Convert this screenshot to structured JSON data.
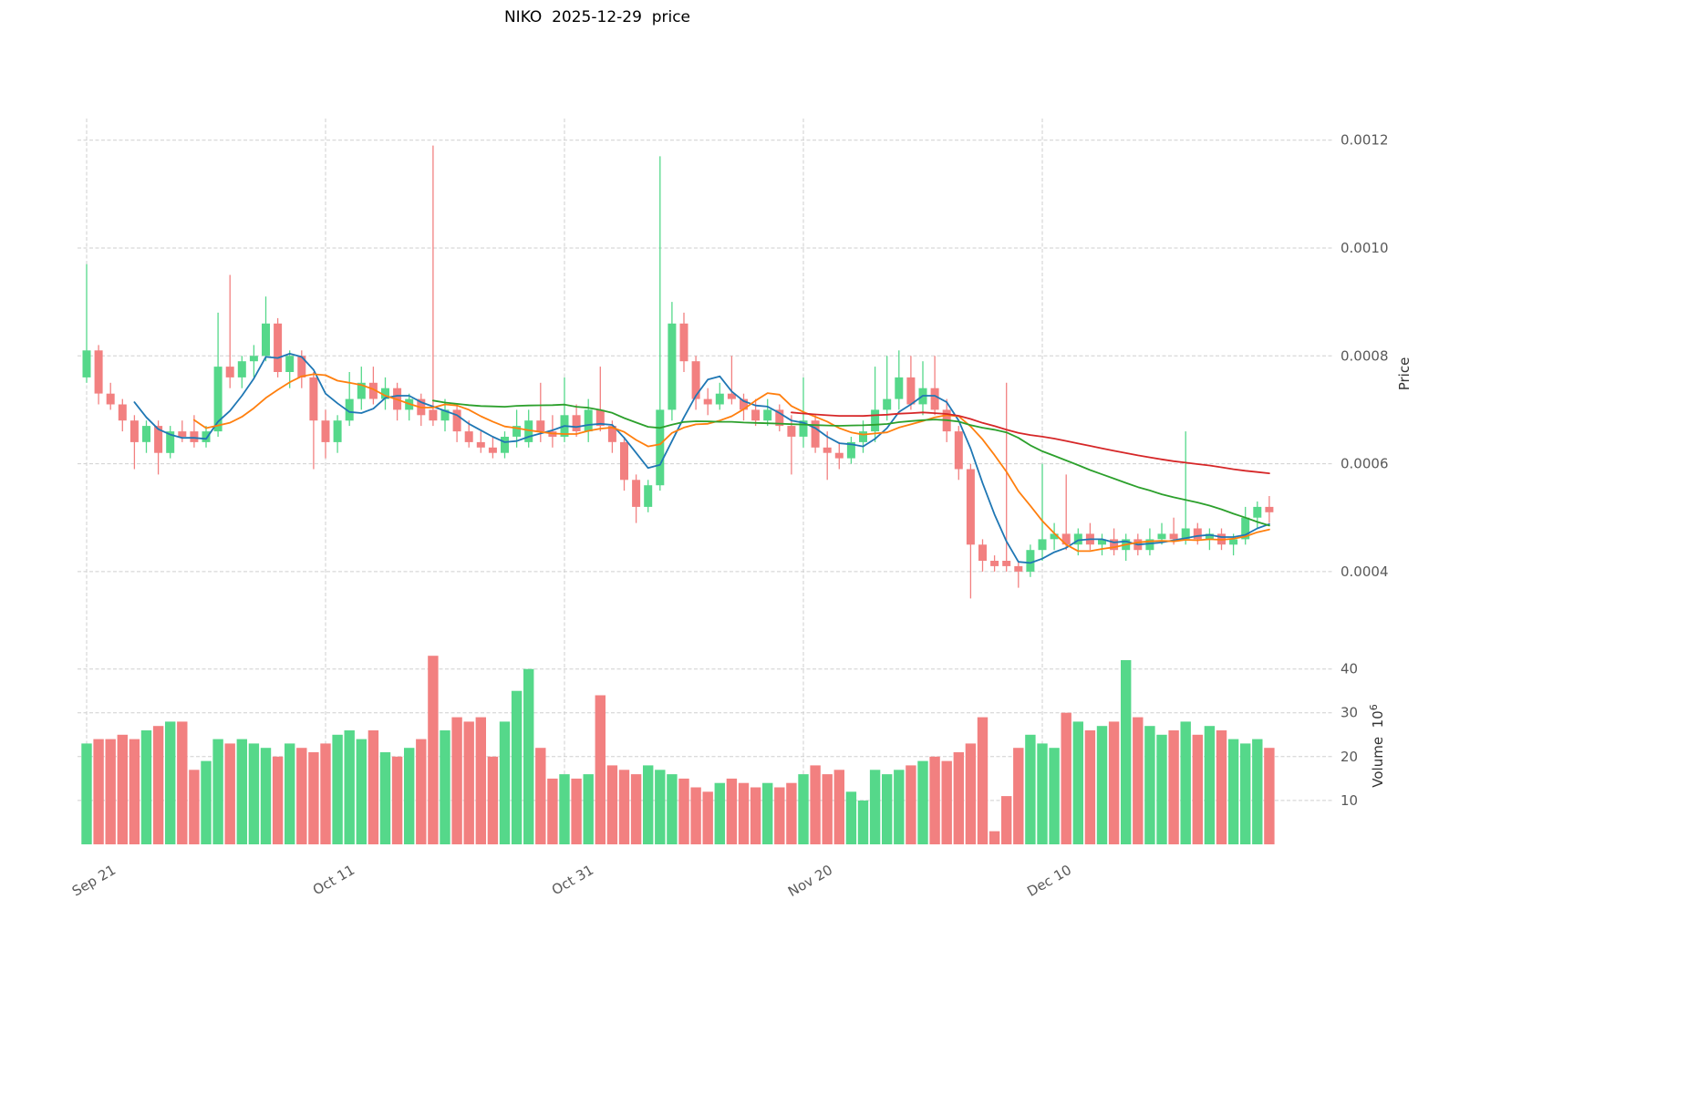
{
  "chart_data": {
    "type": "candlestick",
    "title": "NIKO  2025-12-29  price",
    "price_axis": {
      "label": "Price",
      "ticks": [
        0.0004,
        0.0006,
        0.0008,
        0.001,
        0.0012
      ],
      "tick_labels": [
        "0.0004",
        "0.0006",
        "0.0008",
        "0.0010",
        "0.0012"
      ],
      "ylim": [
        0.0003,
        0.00124
      ]
    },
    "volume_axis": {
      "label": "Volume",
      "unit_base": "10",
      "unit_exponent": "6",
      "ticks": [
        10,
        20,
        30,
        40
      ],
      "tick_labels": [
        "10",
        "20",
        "30",
        "40"
      ],
      "ylim": [
        0,
        47
      ]
    },
    "x_ticks": [
      {
        "index": 0,
        "label": "Sep 21"
      },
      {
        "index": 20,
        "label": "Oct 11"
      },
      {
        "index": 40,
        "label": "Oct 31"
      },
      {
        "index": 60,
        "label": "Nov 20"
      },
      {
        "index": 80,
        "label": "Dec 10"
      }
    ],
    "moving_averages": [
      {
        "window": 5,
        "color": "#1f77b4"
      },
      {
        "window": 10,
        "color": "#ff7f0e"
      },
      {
        "window": 30,
        "color": "#2ca02c"
      },
      {
        "window": 60,
        "color": "#d62728"
      }
    ],
    "colors": {
      "up": "#55d88a",
      "down": "#f28080",
      "grid": "#cfcfcf",
      "background": "#ffffff"
    },
    "columns": [
      "date",
      "open",
      "high",
      "low",
      "close",
      "volume_millions"
    ],
    "candles": [
      [
        "2025-09-21",
        0.00076,
        0.00097,
        0.00075,
        0.00081,
        23
      ],
      [
        "2025-09-22",
        0.00081,
        0.00082,
        0.00071,
        0.00073,
        24
      ],
      [
        "2025-09-23",
        0.00073,
        0.00075,
        0.0007,
        0.00071,
        24
      ],
      [
        "2025-09-24",
        0.00071,
        0.00072,
        0.00066,
        0.00068,
        25
      ],
      [
        "2025-09-25",
        0.00068,
        0.00069,
        0.00059,
        0.00064,
        24
      ],
      [
        "2025-09-26",
        0.00064,
        0.00068,
        0.00062,
        0.00067,
        26
      ],
      [
        "2025-09-27",
        0.00067,
        0.00068,
        0.00058,
        0.00062,
        27
      ],
      [
        "2025-09-28",
        0.00062,
        0.00067,
        0.00061,
        0.00066,
        28
      ],
      [
        "2025-09-29",
        0.00066,
        0.00068,
        0.00064,
        0.00065,
        28
      ],
      [
        "2025-09-30",
        0.00066,
        0.00069,
        0.00063,
        0.00064,
        17
      ],
      [
        "2025-10-01",
        0.00064,
        0.00067,
        0.00063,
        0.00066,
        19
      ],
      [
        "2025-10-02",
        0.00066,
        0.00088,
        0.00065,
        0.00078,
        24
      ],
      [
        "2025-10-03",
        0.00078,
        0.00095,
        0.00074,
        0.00076,
        23
      ],
      [
        "2025-10-04",
        0.00076,
        0.0008,
        0.00074,
        0.00079,
        24
      ],
      [
        "2025-10-05",
        0.00079,
        0.00082,
        0.00076,
        0.0008,
        23
      ],
      [
        "2025-10-06",
        0.0008,
        0.00091,
        0.00079,
        0.00086,
        22
      ],
      [
        "2025-10-07",
        0.00086,
        0.00087,
        0.00076,
        0.00077,
        20
      ],
      [
        "2025-10-08",
        0.00077,
        0.00081,
        0.00074,
        0.0008,
        23
      ],
      [
        "2025-10-09",
        0.0008,
        0.00081,
        0.00074,
        0.00076,
        22
      ],
      [
        "2025-10-10",
        0.00076,
        0.00077,
        0.00059,
        0.00068,
        21
      ],
      [
        "2025-10-11",
        0.00068,
        0.0007,
        0.00061,
        0.00064,
        23
      ],
      [
        "2025-10-12",
        0.00064,
        0.00069,
        0.00062,
        0.00068,
        25
      ],
      [
        "2025-10-13",
        0.00068,
        0.00077,
        0.00067,
        0.00072,
        26
      ],
      [
        "2025-10-14",
        0.00072,
        0.00078,
        0.0007,
        0.00075,
        24
      ],
      [
        "2025-10-15",
        0.00075,
        0.00078,
        0.00071,
        0.00072,
        26
      ],
      [
        "2025-10-16",
        0.00072,
        0.00076,
        0.0007,
        0.00074,
        21
      ],
      [
        "2025-10-17",
        0.00074,
        0.00075,
        0.00068,
        0.0007,
        20
      ],
      [
        "2025-10-18",
        0.0007,
        0.00073,
        0.00068,
        0.00072,
        22
      ],
      [
        "2025-10-19",
        0.00072,
        0.00073,
        0.00067,
        0.00069,
        24
      ],
      [
        "2025-10-20",
        0.0007,
        0.00119,
        0.00067,
        0.00068,
        43
      ],
      [
        "2025-10-21",
        0.00068,
        0.00072,
        0.00066,
        0.0007,
        26
      ],
      [
        "2025-10-22",
        0.0007,
        0.00071,
        0.00064,
        0.00066,
        29
      ],
      [
        "2025-10-23",
        0.00066,
        0.00068,
        0.00063,
        0.00064,
        28
      ],
      [
        "2025-10-24",
        0.00064,
        0.00066,
        0.00062,
        0.00063,
        29
      ],
      [
        "2025-10-25",
        0.00063,
        0.00065,
        0.00061,
        0.00062,
        20
      ],
      [
        "2025-10-26",
        0.00062,
        0.00066,
        0.00061,
        0.00065,
        28
      ],
      [
        "2025-10-27",
        0.00065,
        0.0007,
        0.00063,
        0.00067,
        35
      ],
      [
        "2025-10-28",
        0.00064,
        0.0007,
        0.00063,
        0.00068,
        40
      ],
      [
        "2025-10-29",
        0.00068,
        0.00075,
        0.00064,
        0.00066,
        22
      ],
      [
        "2025-10-30",
        0.00066,
        0.00069,
        0.00063,
        0.00065,
        15
      ],
      [
        "2025-10-31",
        0.00065,
        0.00076,
        0.00064,
        0.00069,
        16
      ],
      [
        "2025-11-01",
        0.00069,
        0.00071,
        0.00065,
        0.00066,
        15
      ],
      [
        "2025-11-02",
        0.00066,
        0.00072,
        0.00064,
        0.0007,
        16
      ],
      [
        "2025-11-03",
        0.0007,
        0.00078,
        0.00066,
        0.00067,
        34
      ],
      [
        "2025-11-04",
        0.00067,
        0.00068,
        0.00062,
        0.00064,
        18
      ],
      [
        "2025-11-05",
        0.00064,
        0.00065,
        0.00055,
        0.00057,
        17
      ],
      [
        "2025-11-06",
        0.00057,
        0.00058,
        0.00049,
        0.00052,
        16
      ],
      [
        "2025-11-07",
        0.00052,
        0.00057,
        0.00051,
        0.00056,
        18
      ],
      [
        "2025-11-08",
        0.00056,
        0.00117,
        0.00055,
        0.0007,
        17
      ],
      [
        "2025-11-09",
        0.0007,
        0.0009,
        0.00068,
        0.00086,
        16
      ],
      [
        "2025-11-10",
        0.00086,
        0.00088,
        0.00077,
        0.00079,
        15
      ],
      [
        "2025-11-11",
        0.00079,
        0.0008,
        0.0007,
        0.00072,
        13
      ],
      [
        "2025-11-12",
        0.00072,
        0.00074,
        0.00069,
        0.00071,
        12
      ],
      [
        "2025-11-13",
        0.00071,
        0.00075,
        0.0007,
        0.00073,
        14
      ],
      [
        "2025-11-14",
        0.00073,
        0.0008,
        0.00071,
        0.00072,
        15
      ],
      [
        "2025-11-15",
        0.00072,
        0.00073,
        0.00068,
        0.0007,
        14
      ],
      [
        "2025-11-16",
        0.0007,
        0.00072,
        0.00067,
        0.00068,
        13
      ],
      [
        "2025-11-17",
        0.00068,
        0.00072,
        0.00067,
        0.0007,
        14
      ],
      [
        "2025-11-18",
        0.0007,
        0.00071,
        0.00066,
        0.00067,
        13
      ],
      [
        "2025-11-19",
        0.00067,
        0.00069,
        0.00058,
        0.00065,
        14
      ],
      [
        "2025-11-20",
        0.00065,
        0.00076,
        0.00063,
        0.00068,
        16
      ],
      [
        "2025-11-21",
        0.00068,
        0.00069,
        0.00062,
        0.00063,
        18
      ],
      [
        "2025-11-22",
        0.00063,
        0.00066,
        0.00057,
        0.00062,
        16
      ],
      [
        "2025-11-23",
        0.00062,
        0.00064,
        0.00059,
        0.00061,
        17
      ],
      [
        "2025-11-24",
        0.00061,
        0.00065,
        0.0006,
        0.00064,
        12
      ],
      [
        "2025-11-25",
        0.00064,
        0.00068,
        0.00062,
        0.00066,
        10
      ],
      [
        "2025-11-26",
        0.00066,
        0.00078,
        0.00064,
        0.0007,
        17
      ],
      [
        "2025-11-27",
        0.0007,
        0.0008,
        0.00068,
        0.00072,
        16
      ],
      [
        "2025-11-28",
        0.00072,
        0.00081,
        0.0007,
        0.00076,
        17
      ],
      [
        "2025-11-29",
        0.00076,
        0.0008,
        0.0007,
        0.00071,
        18
      ],
      [
        "2025-11-30",
        0.00071,
        0.00079,
        0.00069,
        0.00074,
        19
      ],
      [
        "2025-12-01",
        0.00074,
        0.0008,
        0.00069,
        0.0007,
        20
      ],
      [
        "2025-12-02",
        0.0007,
        0.00072,
        0.00064,
        0.00066,
        19
      ],
      [
        "2025-12-03",
        0.00066,
        0.00067,
        0.00057,
        0.00059,
        21
      ],
      [
        "2025-12-04",
        0.00059,
        0.0006,
        0.00035,
        0.00045,
        23
      ],
      [
        "2025-12-05",
        0.00045,
        0.00046,
        0.0004,
        0.00042,
        29
      ],
      [
        "2025-12-06",
        0.00042,
        0.00043,
        0.0004,
        0.00041,
        3
      ],
      [
        "2025-12-07",
        0.00042,
        0.00075,
        0.0004,
        0.00041,
        11
      ],
      [
        "2025-12-08",
        0.00041,
        0.00042,
        0.00037,
        0.0004,
        22
      ],
      [
        "2025-12-09",
        0.0004,
        0.00045,
        0.00039,
        0.00044,
        25
      ],
      [
        "2025-12-10",
        0.00044,
        0.0006,
        0.00042,
        0.00046,
        23
      ],
      [
        "2025-12-11",
        0.00046,
        0.00049,
        0.00044,
        0.00047,
        22
      ],
      [
        "2025-12-12",
        0.00047,
        0.00058,
        0.00044,
        0.00045,
        30
      ],
      [
        "2025-12-13",
        0.00045,
        0.00048,
        0.00043,
        0.00047,
        28
      ],
      [
        "2025-12-14",
        0.00047,
        0.00049,
        0.00044,
        0.00045,
        26
      ],
      [
        "2025-12-15",
        0.00045,
        0.00047,
        0.00043,
        0.00046,
        27
      ],
      [
        "2025-12-16",
        0.00046,
        0.00048,
        0.00043,
        0.00044,
        28
      ],
      [
        "2025-12-17",
        0.00044,
        0.00047,
        0.00042,
        0.00046,
        42
      ],
      [
        "2025-12-18",
        0.00046,
        0.00047,
        0.00043,
        0.00044,
        29
      ],
      [
        "2025-12-19",
        0.00044,
        0.00048,
        0.00043,
        0.00046,
        27
      ],
      [
        "2025-12-20",
        0.00046,
        0.00049,
        0.00045,
        0.00047,
        25
      ],
      [
        "2025-12-21",
        0.00047,
        0.0005,
        0.00045,
        0.00046,
        26
      ],
      [
        "2025-12-22",
        0.00046,
        0.00066,
        0.00045,
        0.00048,
        28
      ],
      [
        "2025-12-23",
        0.00048,
        0.00049,
        0.00045,
        0.00046,
        25
      ],
      [
        "2025-12-24",
        0.00046,
        0.00048,
        0.00044,
        0.00047,
        27
      ],
      [
        "2025-12-25",
        0.00047,
        0.00048,
        0.00044,
        0.00045,
        26
      ],
      [
        "2025-12-26",
        0.00045,
        0.00047,
        0.00043,
        0.00046,
        24
      ],
      [
        "2025-12-27",
        0.00046,
        0.00052,
        0.00045,
        0.0005,
        23
      ],
      [
        "2025-12-28",
        0.0005,
        0.00053,
        0.00048,
        0.00052,
        24
      ],
      [
        "2025-12-29",
        0.00052,
        0.00054,
        0.00049,
        0.00051,
        22
      ]
    ]
  }
}
